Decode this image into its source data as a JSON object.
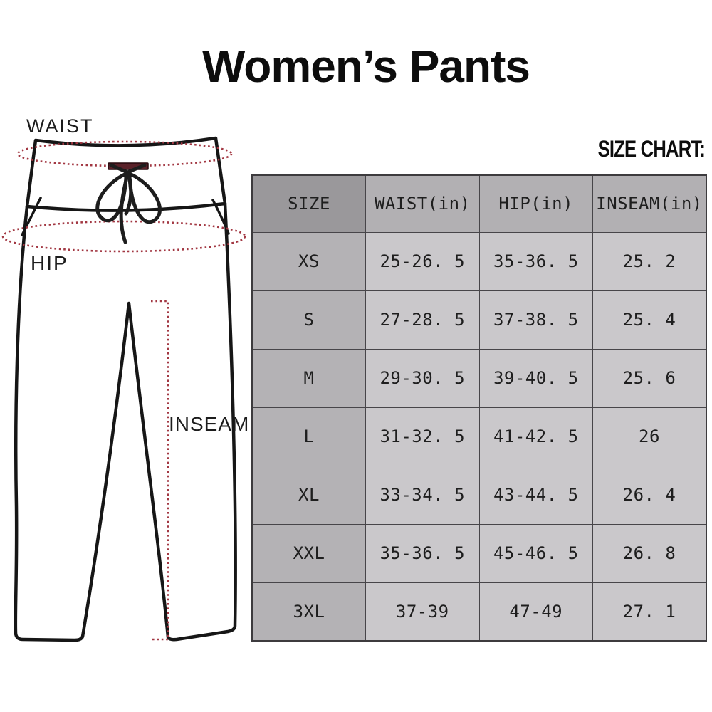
{
  "title": "Women’s Pants",
  "size_chart_label": "SIZE CHART:",
  "diagram": {
    "waist_label": "WAIST",
    "hip_label": "HIP",
    "inseam_label": "INSEAM"
  },
  "table": {
    "headers": [
      "SIZE",
      "WAIST(in)",
      "HIP(in)",
      "INSEAM(in)"
    ],
    "rows": [
      [
        "XS",
        "25-26. 5",
        "35-36. 5",
        "25. 2"
      ],
      [
        "S",
        "27-28. 5",
        "37-38. 5",
        "25. 4"
      ],
      [
        "M",
        "29-30. 5",
        "39-40. 5",
        "25. 6"
      ],
      [
        "L",
        "31-32. 5",
        "41-42. 5",
        "26"
      ],
      [
        "XL",
        "33-34. 5",
        "43-44. 5",
        "26. 4"
      ],
      [
        "XXL",
        "35-36. 5",
        "45-46. 5",
        "26. 8"
      ],
      [
        "3XL",
        "37-39",
        "47-49",
        "27. 1"
      ]
    ]
  },
  "colors": {
    "ink": "#161616",
    "dash-red": "#a23742",
    "drawstring-maroon": "#5a2129",
    "table-border": "#474549",
    "header-size-bg": "#9a989b",
    "header-bg": "#b2b0b3",
    "size-col-bg": "#b4b2b5",
    "cell-bg": "#cac8cb",
    "text": "#1e1e1e"
  }
}
